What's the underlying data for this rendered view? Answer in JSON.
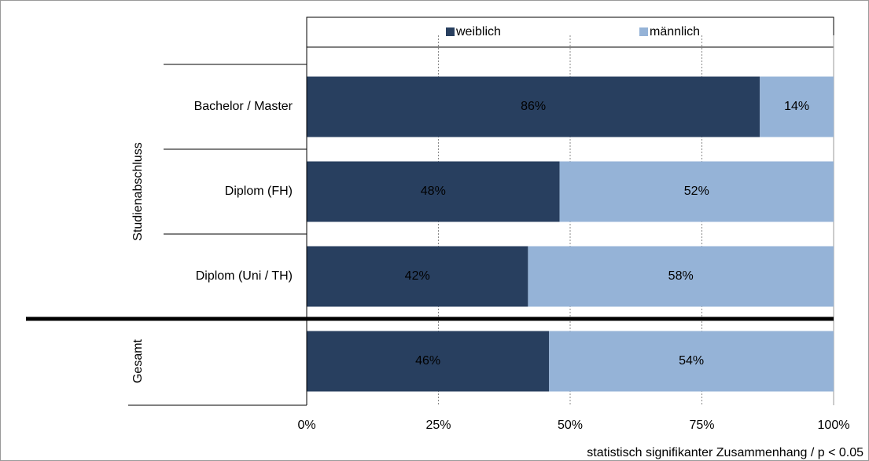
{
  "chart_data": {
    "type": "stacked-bar-horizontal",
    "categories": [
      "Bachelor / Master",
      "Diplom (FH)",
      "Diplom (Uni / TH)",
      null
    ],
    "group_labels": [
      "Studienabschluss",
      "Gesamt"
    ],
    "series": [
      {
        "name": "weiblich",
        "color": "#283f5f",
        "values": [
          86,
          48,
          42,
          46
        ],
        "value_labels": [
          "86%",
          "48%",
          "42%",
          "46%"
        ]
      },
      {
        "name": "männlich",
        "color": "#95b3d7",
        "values": [
          14,
          52,
          58,
          54
        ],
        "value_labels": [
          "14%",
          "52%",
          "58%",
          "54%"
        ]
      }
    ],
    "xlim": [
      0,
      100
    ],
    "xticks": [
      {
        "value": 0,
        "label": "0%"
      },
      {
        "value": 25,
        "label": "25%"
      },
      {
        "value": 50,
        "label": "50%"
      },
      {
        "value": 75,
        "label": "75%"
      },
      {
        "value": 100,
        "label": "100%"
      }
    ],
    "grid": true,
    "legend": "top",
    "note": "statistisch signifikanter Zusammenhang / p < 0.05"
  }
}
